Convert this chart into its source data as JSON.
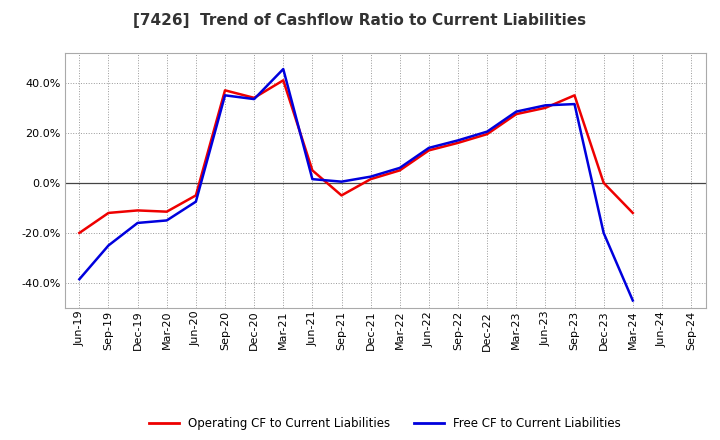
{
  "title": "[7426]  Trend of Cashflow Ratio to Current Liabilities",
  "labels": [
    "Jun-19",
    "Sep-19",
    "Dec-19",
    "Mar-20",
    "Jun-20",
    "Sep-20",
    "Dec-20",
    "Mar-21",
    "Jun-21",
    "Sep-21",
    "Dec-21",
    "Mar-22",
    "Jun-22",
    "Sep-22",
    "Dec-22",
    "Mar-23",
    "Jun-23",
    "Sep-23",
    "Dec-23",
    "Mar-24",
    "Jun-24",
    "Sep-24"
  ],
  "operating_cf": [
    -20.0,
    -12.0,
    -11.0,
    -11.5,
    -5.0,
    37.0,
    34.0,
    41.0,
    5.0,
    -5.0,
    1.5,
    5.0,
    13.0,
    16.0,
    19.5,
    27.5,
    30.0,
    35.0,
    0.0,
    -12.0,
    null,
    null
  ],
  "free_cf": [
    -38.5,
    -25.0,
    -16.0,
    -15.0,
    -7.5,
    35.0,
    33.5,
    45.5,
    1.5,
    0.5,
    2.5,
    6.0,
    14.0,
    17.0,
    20.5,
    28.5,
    31.0,
    31.5,
    -20.0,
    -47.0,
    null,
    null
  ],
  "operating_color": "#ee0000",
  "free_color": "#0000dd",
  "ylim_min": -50,
  "ylim_max": 52,
  "yticks": [
    -40,
    -20,
    0,
    20,
    40
  ],
  "plot_bg": "#ffffff",
  "fig_bg": "#ffffff",
  "grid_color": "#999999",
  "zero_line_color": "#444444",
  "title_fontsize": 11,
  "title_color": "#333333",
  "tick_fontsize": 8,
  "legend_operating": "Operating CF to Current Liabilities",
  "legend_free": "Free CF to Current Liabilities",
  "line_width": 1.8
}
